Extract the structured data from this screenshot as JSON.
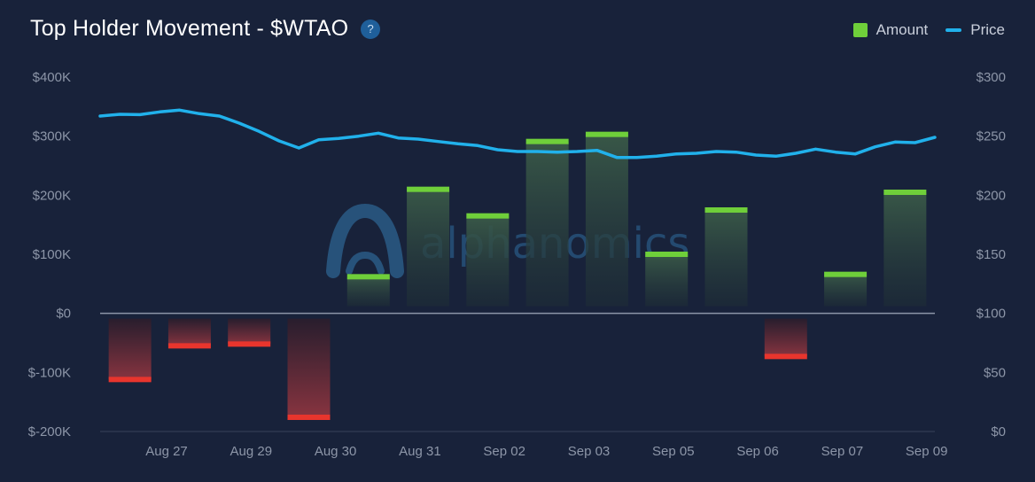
{
  "title": "Top Holder Movement - $WTAO",
  "help_glyph": "?",
  "legend": {
    "amount": "Amount",
    "price": "Price"
  },
  "watermark": "alphanomics",
  "colors": {
    "background": "#18223a",
    "positive_bar": "#6fcf3a",
    "negative_bar": "#e8352d",
    "price_line": "#21b1eb"
  },
  "chart_data": {
    "type": "bar",
    "x_ticks": [
      "Aug 27",
      "Aug 29",
      "Aug 30",
      "Aug 31",
      "Sep 02",
      "Sep 03",
      "Sep 05",
      "Sep 06",
      "Sep 07",
      "Sep 09"
    ],
    "left_axis": {
      "ticks": [
        "$400K",
        "$300K",
        "$200K",
        "$100K",
        "$0",
        "$-100K",
        "$-200K"
      ],
      "range": [
        -200000,
        400000
      ]
    },
    "right_axis": {
      "ticks": [
        "$300",
        "$250",
        "$200",
        "$150",
        "$100",
        "$50",
        "$0"
      ],
      "range": [
        0,
        300
      ]
    },
    "amount": [
      -112000,
      -55000,
      -52000,
      -176000,
      62000,
      210000,
      165000,
      291000,
      303000,
      100000,
      175000,
      -73000,
      66000,
      205000
    ],
    "price": [
      267,
      268.5,
      268.2,
      270.5,
      272,
      269,
      267,
      261,
      254,
      246,
      240,
      247,
      248,
      250,
      252.5,
      248.5,
      247.5,
      245.5,
      243.5,
      242,
      238.5,
      237,
      237,
      236.5,
      237,
      238,
      232,
      232,
      233,
      235,
      235.5,
      237,
      236.5,
      234,
      233,
      235.5,
      239,
      236.5,
      235,
      241,
      245,
      244.5,
      249
    ]
  }
}
